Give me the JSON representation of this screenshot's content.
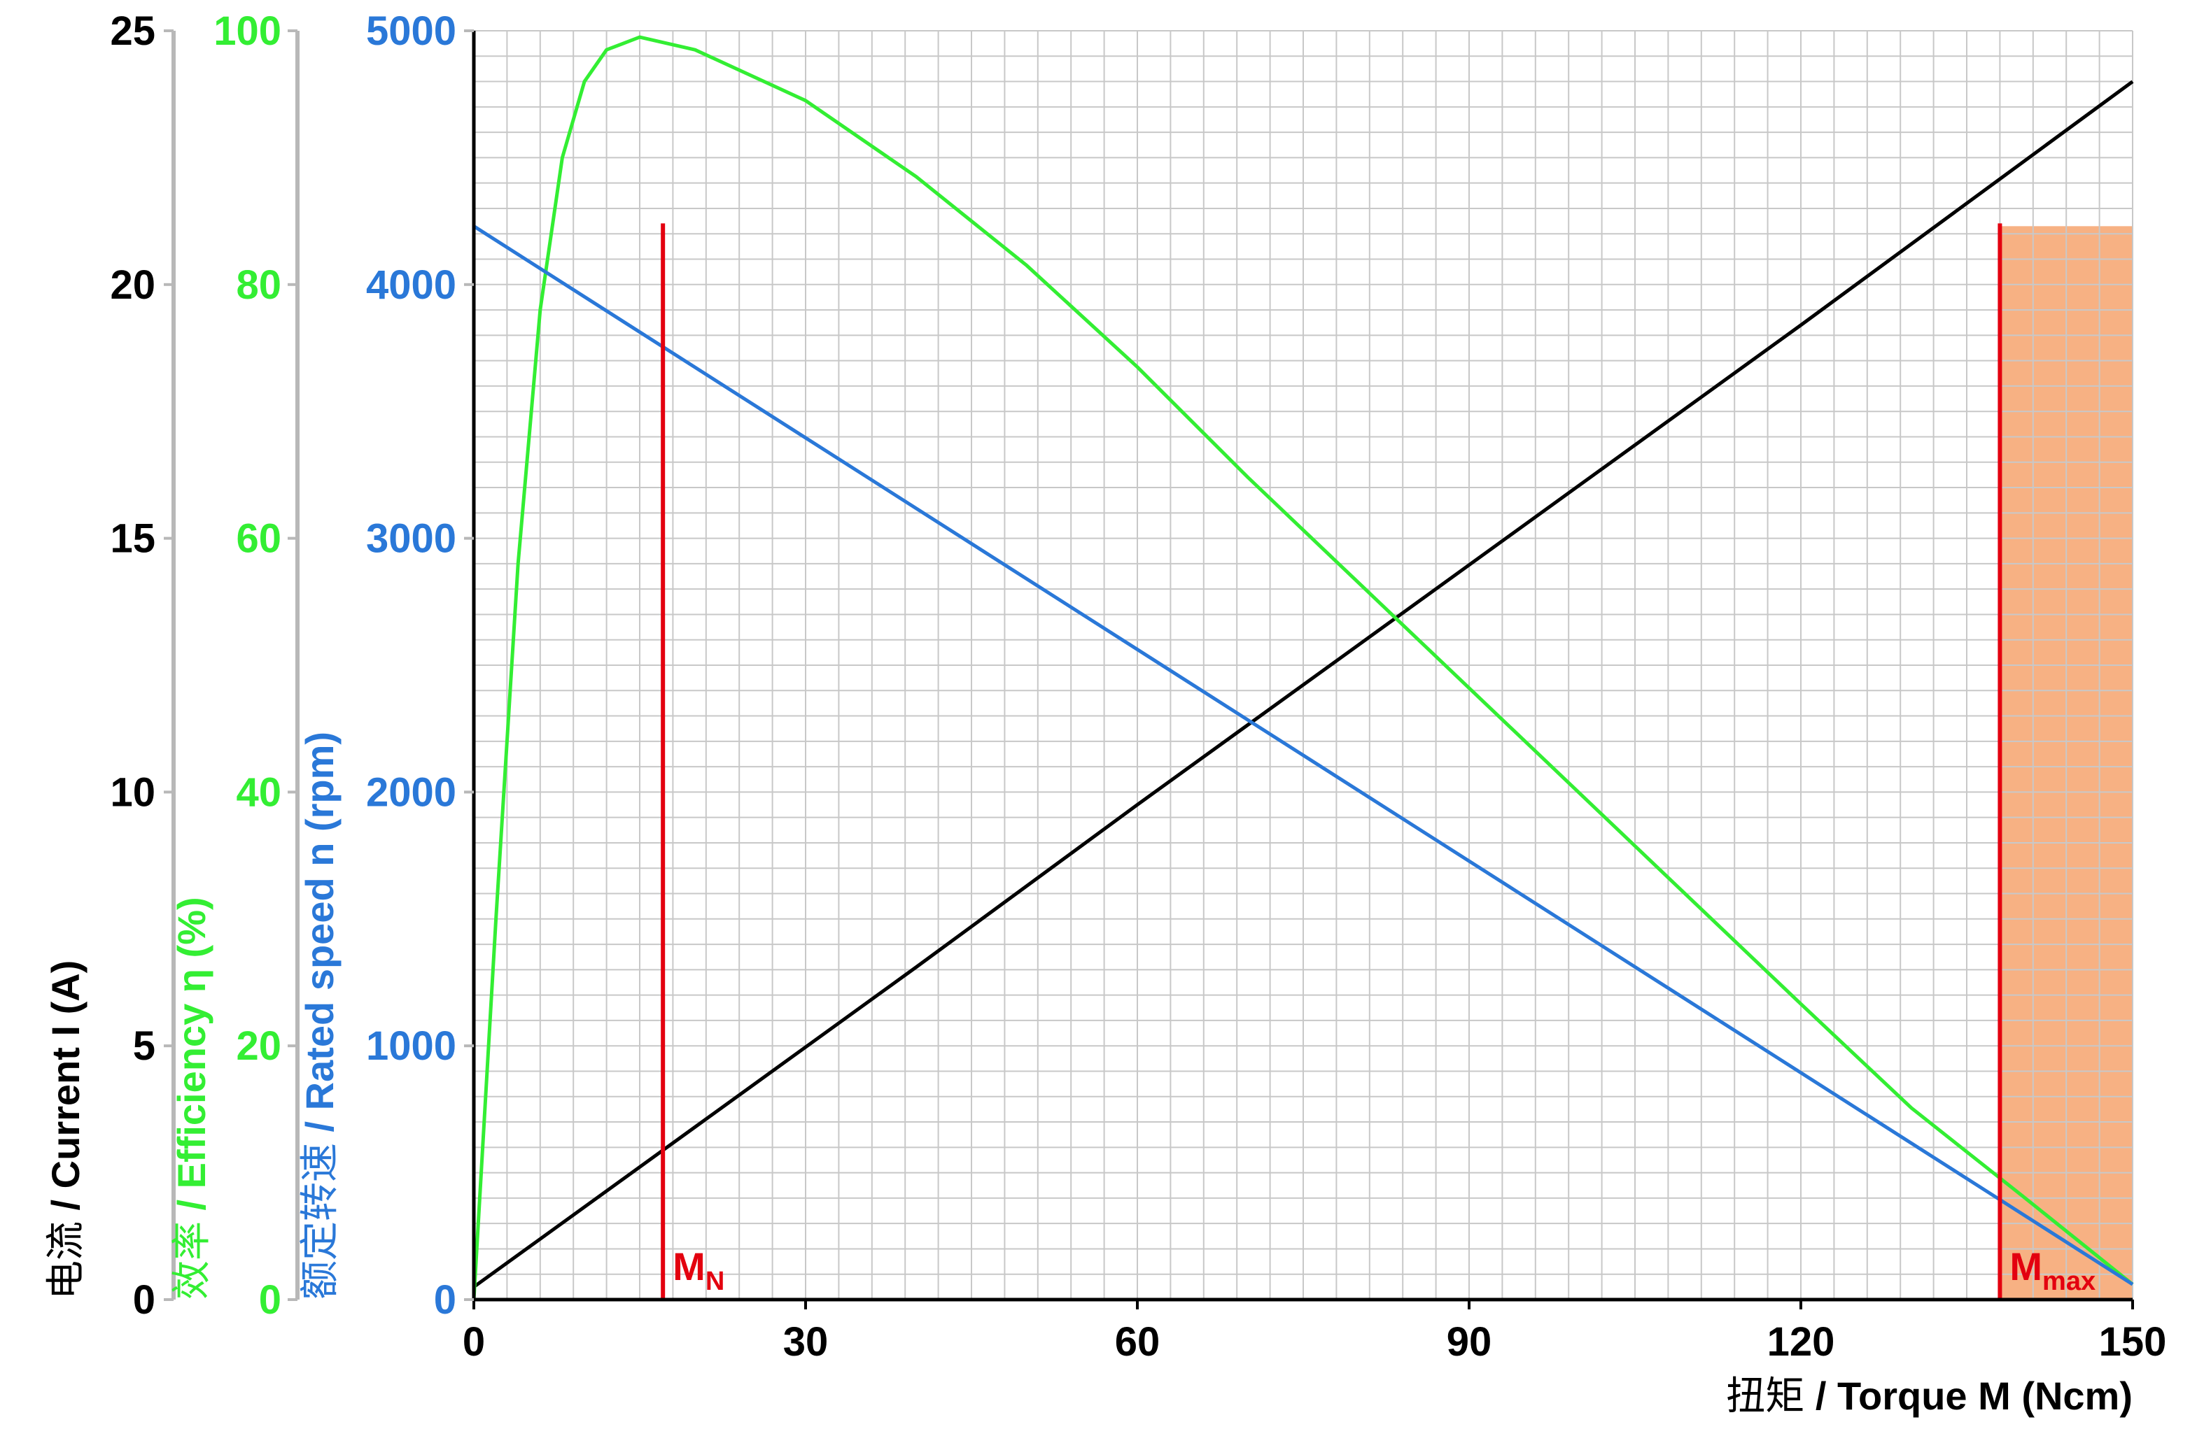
{
  "chart_data": {
    "type": "line",
    "x_axis": {
      "label_zh": "扭矩",
      "label_en": " / Torque M (Ncm)",
      "range": [
        0,
        150
      ],
      "ticks": [
        0,
        30,
        60,
        90,
        120,
        150
      ],
      "color": "#000000"
    },
    "y_axes": [
      {
        "id": "current",
        "label_zh": "电流",
        "label_en": " / Current I (A)",
        "range": [
          0,
          25
        ],
        "ticks": [
          0,
          5,
          10,
          15,
          20,
          25
        ],
        "color": "#000000"
      },
      {
        "id": "efficiency",
        "label_zh": "效率",
        "label_en": " / Efficiency η  (%)",
        "range": [
          0,
          100
        ],
        "ticks": [
          0,
          20,
          40,
          60,
          80,
          100
        ],
        "color": "#33ee33"
      },
      {
        "id": "speed",
        "label_zh": "额定转速",
        "label_en": " / Rated speed n (rpm)",
        "range": [
          0,
          5000
        ],
        "ticks": [
          0,
          1000,
          2000,
          3000,
          4000,
          5000
        ],
        "color": "#2a78d8"
      }
    ],
    "series": [
      {
        "axis": "current",
        "color": "#000000",
        "x": [
          0,
          20,
          40,
          60,
          80,
          100,
          120,
          150
        ],
        "y": [
          0.25,
          3.4,
          6.55,
          9.75,
          12.9,
          16.05,
          19.2,
          24.0
        ]
      },
      {
        "axis": "efficiency",
        "color": "#33ee33",
        "x": [
          0,
          2,
          4,
          6,
          8,
          10,
          12,
          15,
          20,
          30,
          40,
          50,
          60,
          70,
          80,
          90,
          100,
          110,
          120,
          130,
          140,
          150
        ],
        "y": [
          0,
          30,
          58,
          78,
          90,
          96,
          98.5,
          99.5,
          98.5,
          94.5,
          88.5,
          81.5,
          73.5,
          64.8,
          56.5,
          48.2,
          39.9,
          31.6,
          23.3,
          15.1,
          8.2,
          1.2
        ]
      },
      {
        "axis": "speed",
        "color": "#2a78d8",
        "x": [
          0,
          150
        ],
        "y": [
          4230,
          60
        ]
      }
    ],
    "markers": [
      {
        "x": 17.1,
        "label": "M",
        "subscript": "N",
        "color": "#e3000f"
      },
      {
        "x": 138,
        "label": "M",
        "subscript": "max",
        "color": "#e3000f"
      }
    ],
    "shaded_region": {
      "x_from": 138,
      "x_to": 150,
      "y_top_speed": 4230,
      "color": "#f7b183"
    },
    "grid": true,
    "grid_step_x": 3,
    "grid_step_speed": 100
  }
}
